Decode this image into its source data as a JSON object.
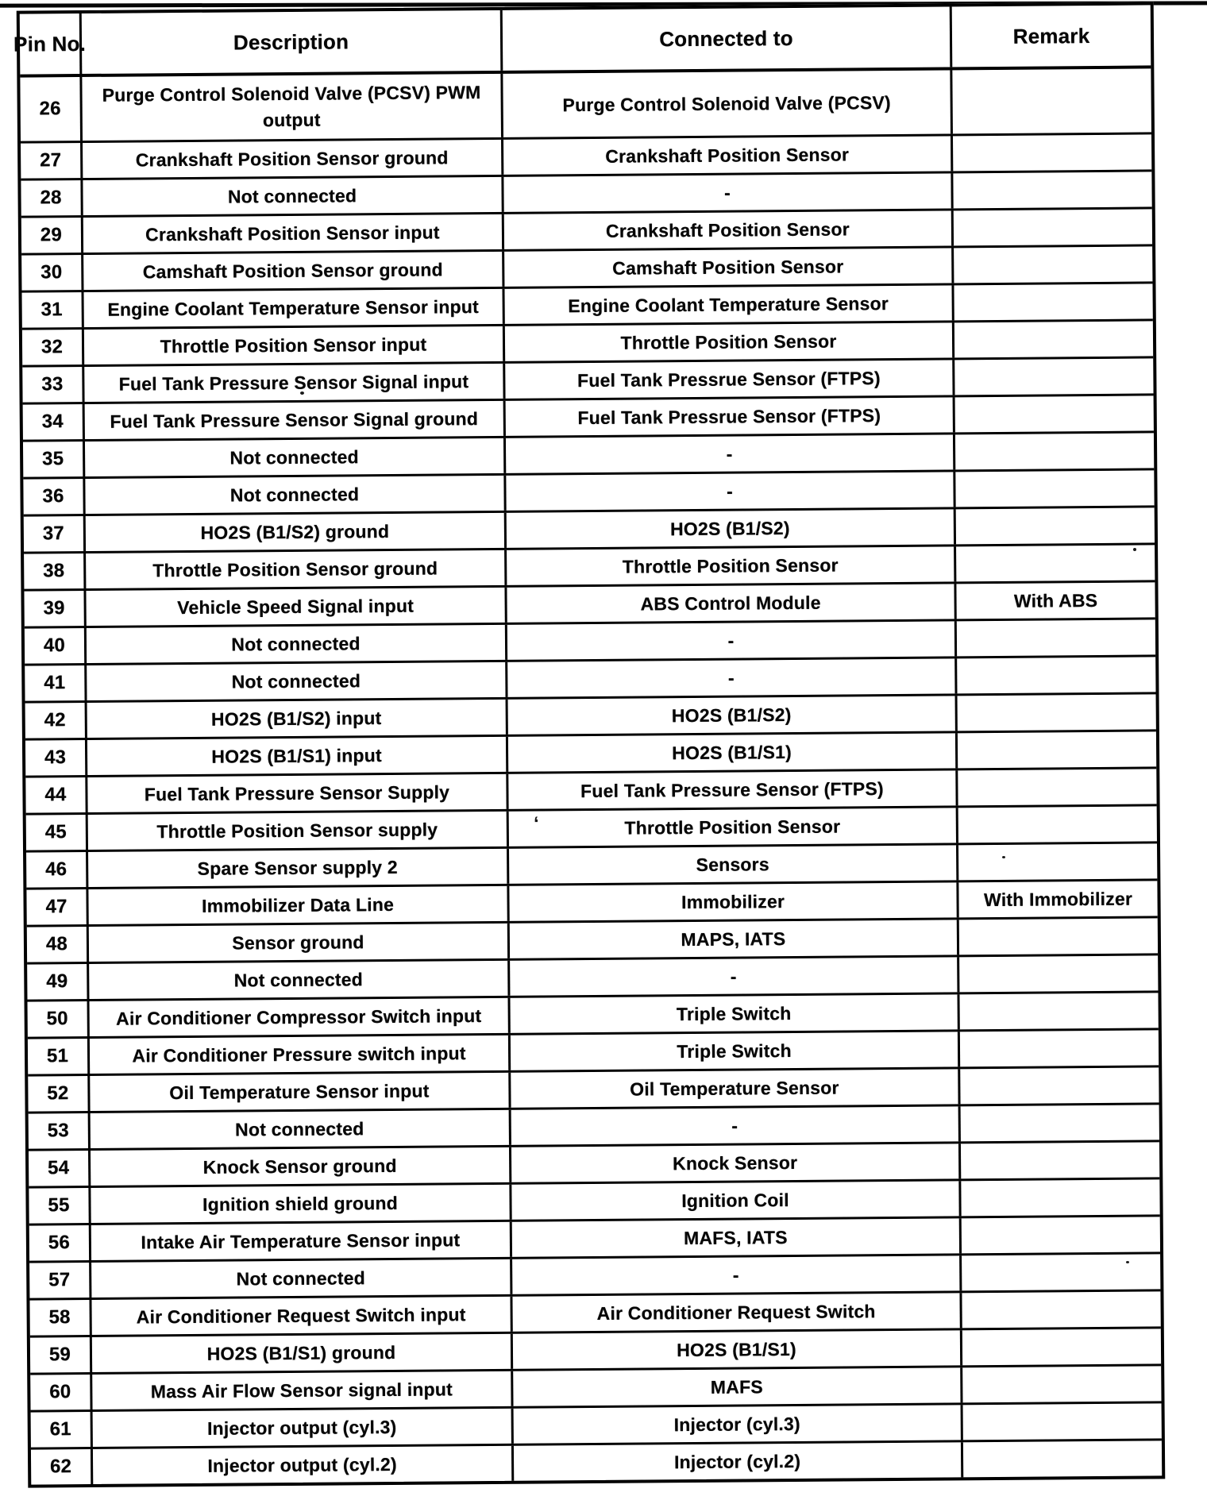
{
  "table": {
    "header": {
      "pin": "Pin\nNo.",
      "description": "Description",
      "connected": "Connected to",
      "remark": "Remark"
    },
    "rows": [
      {
        "pin": "26",
        "description": "Purge Control Solenoid Valve (PCSV) PWM output",
        "connected": "Purge Control Solenoid Valve (PCSV)",
        "remark": ""
      },
      {
        "pin": "27",
        "description": "Crankshaft Position Sensor ground",
        "connected": "Crankshaft Position Sensor",
        "remark": ""
      },
      {
        "pin": "28",
        "description": "Not connected",
        "connected": "-",
        "remark": ""
      },
      {
        "pin": "29",
        "description": "Crankshaft Position Sensor input",
        "connected": "Crankshaft Position Sensor",
        "remark": ""
      },
      {
        "pin": "30",
        "description": "Camshaft Position Sensor ground",
        "connected": "Camshaft Position Sensor",
        "remark": ""
      },
      {
        "pin": "31",
        "description": "Engine Coolant Temperature Sensor input",
        "connected": "Engine Coolant Temperature Sensor",
        "remark": ""
      },
      {
        "pin": "32",
        "description": "Throttle Position Sensor input",
        "connected": "Throttle Position Sensor",
        "remark": ""
      },
      {
        "pin": "33",
        "description": "Fuel Tank Pressure Sensor Signal input",
        "connected": "Fuel Tank Pressrue Sensor (FTPS)",
        "remark": ""
      },
      {
        "pin": "34",
        "description": "Fuel Tank Pressure Sensor Signal ground",
        "connected": "Fuel Tank Pressrue Sensor (FTPS)",
        "remark": ""
      },
      {
        "pin": "35",
        "description": "Not connected",
        "connected": "-",
        "remark": ""
      },
      {
        "pin": "36",
        "description": "Not connected",
        "connected": "-",
        "remark": ""
      },
      {
        "pin": "37",
        "description": "HO2S (B1/S2) ground",
        "connected": "HO2S (B1/S2)",
        "remark": ""
      },
      {
        "pin": "38",
        "description": "Throttle Position Sensor ground",
        "connected": "Throttle Position Sensor",
        "remark": ""
      },
      {
        "pin": "39",
        "description": "Vehicle Speed Signal input",
        "connected": "ABS Control Module",
        "remark": "With ABS"
      },
      {
        "pin": "40",
        "description": "Not connected",
        "connected": "-",
        "remark": ""
      },
      {
        "pin": "41",
        "description": "Not connected",
        "connected": "-",
        "remark": ""
      },
      {
        "pin": "42",
        "description": "HO2S (B1/S2) input",
        "connected": "HO2S (B1/S2)",
        "remark": ""
      },
      {
        "pin": "43",
        "description": "HO2S (B1/S1) input",
        "connected": "HO2S (B1/S1)",
        "remark": ""
      },
      {
        "pin": "44",
        "description": "Fuel Tank Pressure Sensor Supply",
        "connected": "Fuel Tank Pressure Sensor (FTPS)",
        "remark": ""
      },
      {
        "pin": "45",
        "description": "Throttle Position Sensor supply",
        "connected": "Throttle Position Sensor",
        "remark": ""
      },
      {
        "pin": "46",
        "description": "Spare Sensor supply 2",
        "connected": "Sensors",
        "remark": ""
      },
      {
        "pin": "47",
        "description": "Immobilizer Data Line",
        "connected": "Immobilizer",
        "remark": "With Immobilizer"
      },
      {
        "pin": "48",
        "description": "Sensor ground",
        "connected": "MAPS, IATS",
        "remark": ""
      },
      {
        "pin": "49",
        "description": "Not connected",
        "connected": "-",
        "remark": ""
      },
      {
        "pin": "50",
        "description": "Air Conditioner Compressor Switch input",
        "connected": "Triple Switch",
        "remark": ""
      },
      {
        "pin": "51",
        "description": "Air Conditioner Pressure switch input",
        "connected": "Triple Switch",
        "remark": ""
      },
      {
        "pin": "52",
        "description": "Oil Temperature Sensor input",
        "connected": "Oil Temperature Sensor",
        "remark": ""
      },
      {
        "pin": "53",
        "description": "Not connected",
        "connected": "-",
        "remark": ""
      },
      {
        "pin": "54",
        "description": "Knock Sensor ground",
        "connected": "Knock Sensor",
        "remark": ""
      },
      {
        "pin": "55",
        "description": "Ignition shield ground",
        "connected": "Ignition Coil",
        "remark": ""
      },
      {
        "pin": "56",
        "description": "Intake Air Temperature Sensor input",
        "connected": "MAFS, IATS",
        "remark": ""
      },
      {
        "pin": "57",
        "description": "Not connected",
        "connected": "-",
        "remark": ""
      },
      {
        "pin": "58",
        "description": "Air Conditioner Request Switch input",
        "connected": "Air Conditioner Request Switch",
        "remark": ""
      },
      {
        "pin": "59",
        "description": "HO2S (B1/S1) ground",
        "connected": "HO2S (B1/S1)",
        "remark": ""
      },
      {
        "pin": "60",
        "description": "Mass Air Flow Sensor signal input",
        "connected": "MAFS",
        "remark": ""
      },
      {
        "pin": "61",
        "description": "Injector output (cyl.3)",
        "connected": "Injector (cyl.3)",
        "remark": ""
      },
      {
        "pin": "62",
        "description": "Injector output (cyl.2)",
        "connected": "Injector (cyl.2)",
        "remark": ""
      }
    ]
  },
  "artifacts": {
    "row45_mark": "‘"
  },
  "colors": {
    "ink": "#0d0d0d",
    "paper": "#ffffff"
  }
}
